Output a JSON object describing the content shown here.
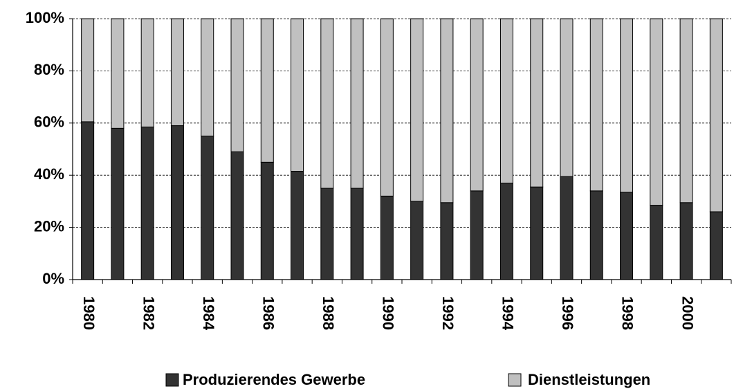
{
  "chart_data": {
    "type": "stacked-bar",
    "categories": [
      "1980",
      null,
      "1982",
      null,
      "1984",
      null,
      "1986",
      null,
      "1988",
      null,
      "1990",
      null,
      "1992",
      null,
      "1994",
      null,
      "1996",
      null,
      "1998",
      null,
      "2000",
      null
    ],
    "series": [
      {
        "name": "Produzierendes Gewerbe",
        "color": "#333333",
        "values": [
          60.5,
          58,
          58.5,
          59,
          55,
          49,
          45,
          41.5,
          35,
          35,
          32,
          30,
          29.5,
          34,
          37,
          35.5,
          39.5,
          34,
          33.5,
          28.5,
          29.5,
          26
        ]
      },
      {
        "name": "Dienstleistungen",
        "color": "#c0c0c0",
        "values": [
          39.5,
          42,
          41.5,
          41,
          45,
          51,
          55,
          58.5,
          65,
          65,
          68,
          70,
          70.5,
          66,
          63,
          64.5,
          60.5,
          66,
          66.5,
          71.5,
          70.5,
          74
        ]
      }
    ],
    "ylim": [
      0,
      100
    ],
    "yticks": [
      {
        "value": 0,
        "label": "0%"
      },
      {
        "value": 20,
        "label": "20%"
      },
      {
        "value": 40,
        "label": "40%"
      },
      {
        "value": 60,
        "label": "60%"
      },
      {
        "value": 80,
        "label": "80%"
      },
      {
        "value": 100,
        "label": "100%"
      }
    ],
    "grid": true,
    "legend": "bottom"
  }
}
